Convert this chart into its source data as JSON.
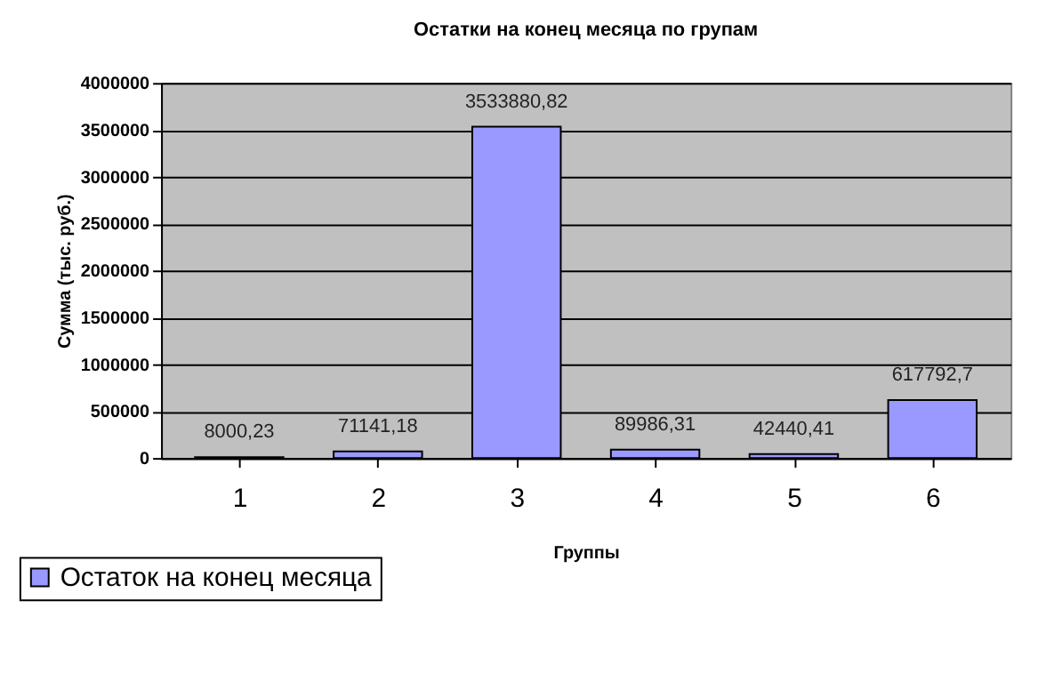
{
  "chart_data": {
    "type": "bar",
    "title": "Остатки на конец месяца по групам",
    "xlabel": "Группы",
    "ylabel": "Сумма (тыс. руб.)",
    "categories": [
      "1",
      "2",
      "3",
      "4",
      "5",
      "6"
    ],
    "series": [
      {
        "name": "Остаток на конец месяца",
        "color": "#9999ff",
        "values": [
          8000.23,
          71141.18,
          3533880.82,
          89986.31,
          42440.41,
          617792.7
        ],
        "value_labels": [
          "8000,23",
          "71141,18",
          "3533880,82",
          "89986,31",
          "42440,41",
          "617792,7"
        ]
      }
    ],
    "ylim": [
      0,
      4000000
    ],
    "yticks": [
      0,
      500000,
      1000000,
      1500000,
      2000000,
      2500000,
      3000000,
      3500000,
      4000000
    ],
    "grid": "y",
    "legend": "bottom left"
  }
}
